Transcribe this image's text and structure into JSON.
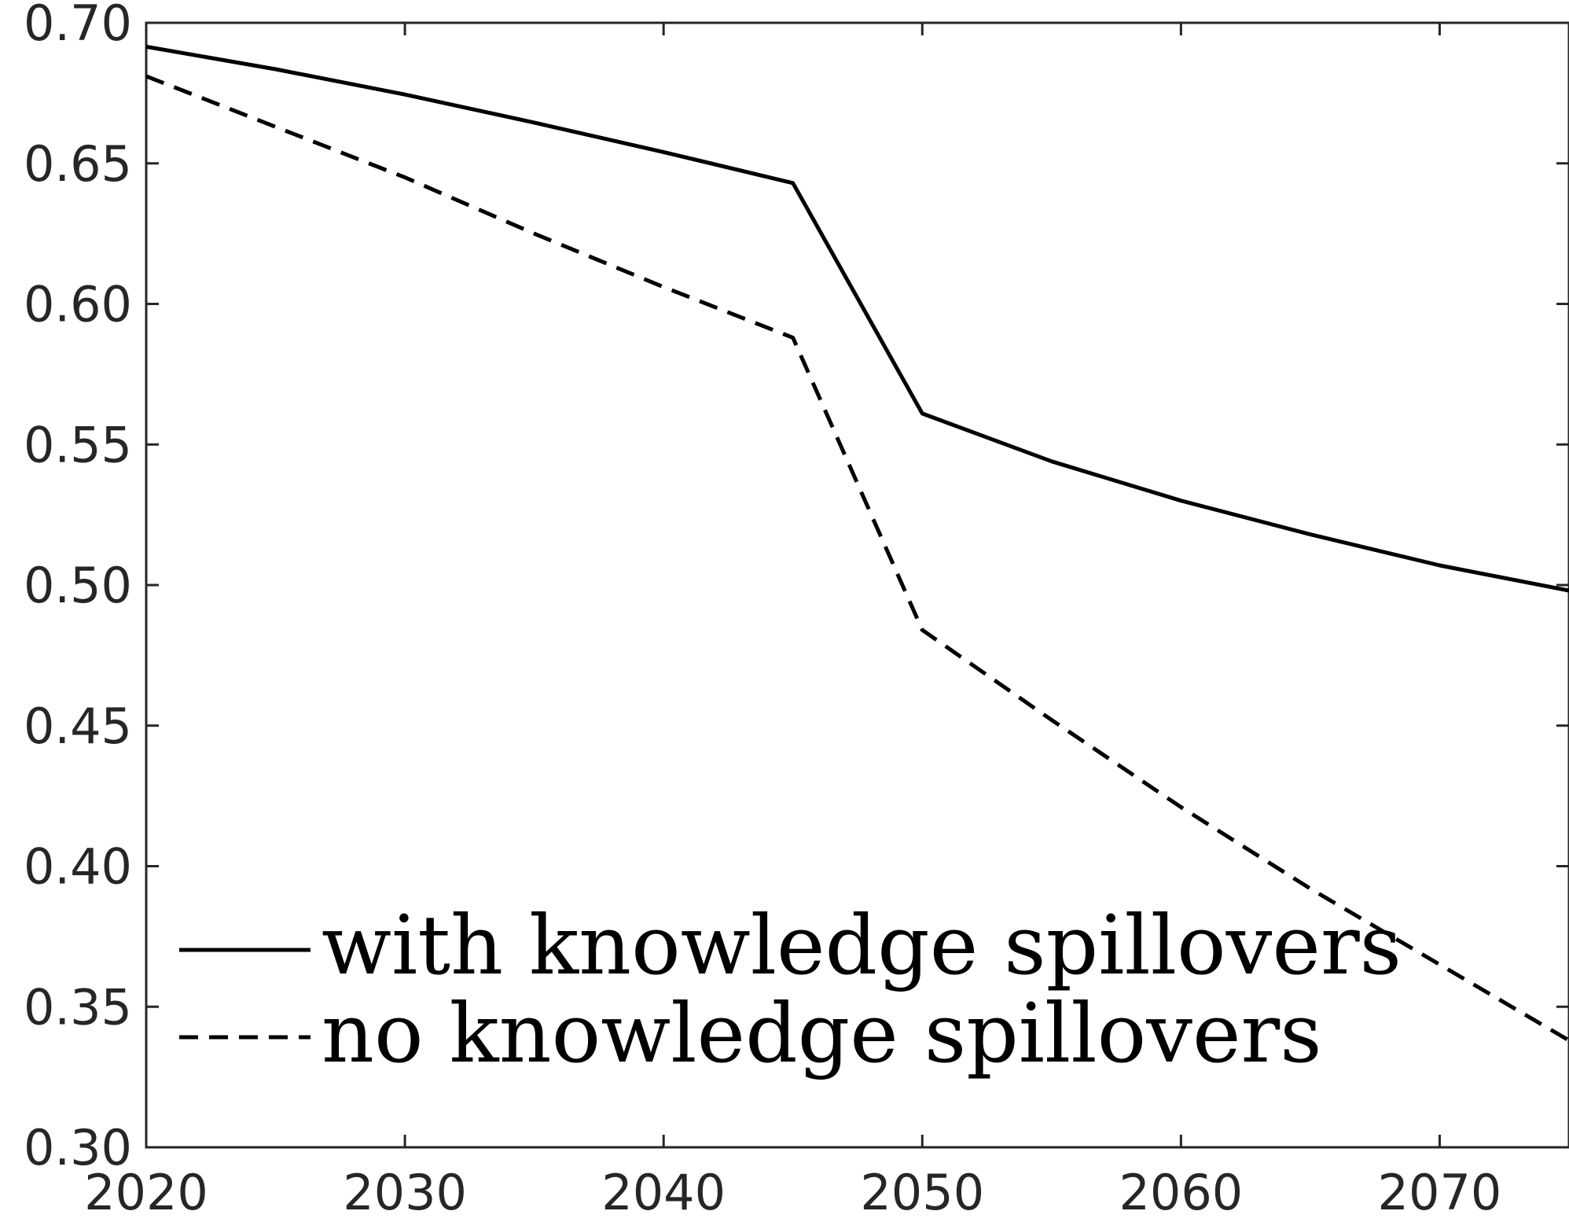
{
  "chart_data": {
    "type": "line",
    "title": "",
    "xlabel": "",
    "ylabel": "",
    "xlim": [
      2020,
      2075
    ],
    "ylim": [
      0.3,
      0.7
    ],
    "x_ticks": [
      2020,
      2030,
      2040,
      2050,
      2060,
      2070
    ],
    "x_tick_labels": [
      "2020",
      "2030",
      "2040",
      "2050",
      "2060",
      "2070"
    ],
    "y_ticks": [
      0.3,
      0.35,
      0.4,
      0.45,
      0.5,
      0.55,
      0.6,
      0.65,
      0.7
    ],
    "y_tick_labels": [
      "0.30",
      "0.35",
      "0.40",
      "0.45",
      "0.50",
      "0.55",
      "0.60",
      "0.65",
      "0.70"
    ],
    "grid": false,
    "legend_position": "bottom-left",
    "x": [
      2020,
      2025,
      2030,
      2035,
      2040,
      2045,
      2050,
      2055,
      2060,
      2065,
      2070,
      2075
    ],
    "series": [
      {
        "name": "with knowledge spillovers",
        "style": "solid",
        "color": "#000000",
        "values": [
          0.6915,
          0.6835,
          0.6745,
          0.6645,
          0.654,
          0.643,
          0.561,
          0.544,
          0.53,
          0.518,
          0.507,
          0.498
        ]
      },
      {
        "name": "no knowledge spillovers",
        "style": "dashed",
        "color": "#000000",
        "values": [
          0.681,
          0.663,
          0.645,
          0.625,
          0.606,
          0.588,
          0.484,
          0.452,
          0.421,
          0.392,
          0.365,
          0.338
        ]
      }
    ]
  }
}
